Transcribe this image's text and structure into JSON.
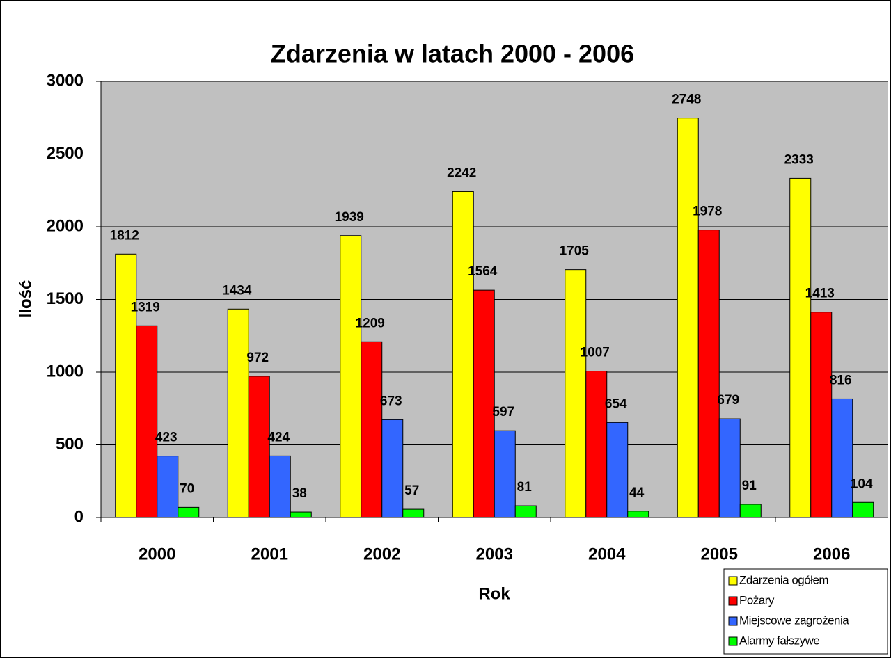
{
  "chart_data": {
    "type": "bar",
    "title": "Zdarzenia w latach 2000 - 2006",
    "x_label": "Rok",
    "y_label": "Ilość",
    "categories": [
      "2000",
      "2001",
      "2002",
      "2003",
      "2004",
      "2005",
      "2006"
    ],
    "series": [
      {
        "name": "Zdarzenia ogółem",
        "color": "#ffff00",
        "values": [
          1812,
          1434,
          1939,
          2242,
          1705,
          2748,
          2333
        ]
      },
      {
        "name": "Pożary",
        "color": "#ff0000",
        "values": [
          1319,
          972,
          1209,
          1564,
          1007,
          1978,
          1413
        ]
      },
      {
        "name": "Miejscowe zagrożenia",
        "color": "#3366ff",
        "values": [
          423,
          424,
          673,
          597,
          654,
          679,
          816
        ]
      },
      {
        "name": "Alarmy fałszywe",
        "color": "#00ff00",
        "values": [
          70,
          38,
          57,
          81,
          44,
          91,
          104
        ]
      }
    ],
    "ylim": [
      0,
      3000
    ],
    "yticks": [
      0,
      500,
      1000,
      1500,
      2000,
      2500,
      3000
    ],
    "grid": true,
    "legend": "lower right",
    "plot_background": "#c0c0c0"
  }
}
